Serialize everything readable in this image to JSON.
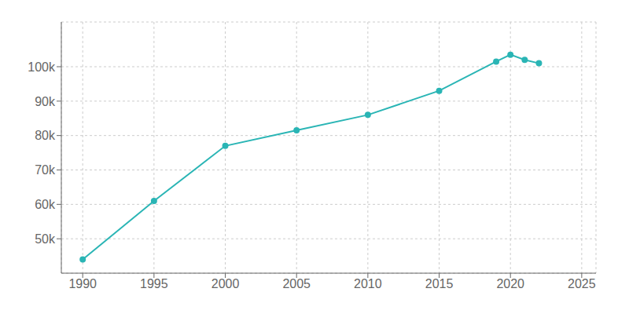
{
  "chart_data": {
    "type": "line",
    "x": [
      1990,
      1995,
      2000,
      2005,
      2010,
      2015,
      2019,
      2020,
      2021,
      2022
    ],
    "series": [
      {
        "values": [
          44000,
          61000,
          77000,
          81500,
          86000,
          93000,
          101500,
          103500,
          102000,
          101000
        ],
        "color": "#2ab5b5",
        "marker": "circle"
      }
    ],
    "xlim": [
      1988.5,
      2026
    ],
    "xticks": [
      1990,
      1995,
      2000,
      2005,
      2010,
      2015,
      2020,
      2025
    ],
    "ylim": [
      40000,
      113000
    ],
    "yticks": [
      {
        "value": 50000,
        "label": "50k"
      },
      {
        "value": 60000,
        "label": "60k"
      },
      {
        "value": 70000,
        "label": "70k"
      },
      {
        "value": 80000,
        "label": "80k"
      },
      {
        "value": 90000,
        "label": "90k"
      },
      {
        "value": 100000,
        "label": "100k"
      }
    ],
    "grid": true
  }
}
